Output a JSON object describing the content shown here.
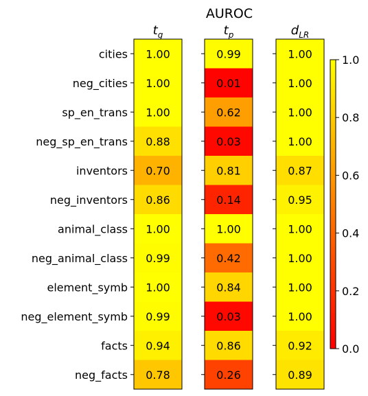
{
  "chart_data": {
    "type": "heatmap",
    "title": "AUROC",
    "rows": [
      "cities",
      "neg_cities",
      "sp_en_trans",
      "neg_sp_en_trans",
      "inventors",
      "neg_inventors",
      "animal_class",
      "neg_animal_class",
      "element_symb",
      "neg_element_symb",
      "facts",
      "neg_facts"
    ],
    "columns": [
      {
        "base": "t",
        "sub": "g"
      },
      {
        "base": "t",
        "sub": "p"
      },
      {
        "base": "d",
        "sub": "LR"
      }
    ],
    "values": [
      [
        1.0,
        0.99,
        1.0
      ],
      [
        1.0,
        0.01,
        1.0
      ],
      [
        1.0,
        0.62,
        1.0
      ],
      [
        0.88,
        0.03,
        1.0
      ],
      [
        0.7,
        0.81,
        0.87
      ],
      [
        0.86,
        0.14,
        0.95
      ],
      [
        1.0,
        1.0,
        1.0
      ],
      [
        0.99,
        0.42,
        1.0
      ],
      [
        1.0,
        0.84,
        1.0
      ],
      [
        0.99,
        0.03,
        1.0
      ],
      [
        0.94,
        0.86,
        0.92
      ],
      [
        0.78,
        0.26,
        0.89
      ]
    ],
    "colormap": "autumn",
    "colorbar": {
      "range": [
        0.0,
        1.0
      ],
      "ticks": [
        "0.0",
        "0.2",
        "0.4",
        "0.6",
        "0.8",
        "1.0"
      ],
      "placement": "right"
    }
  }
}
